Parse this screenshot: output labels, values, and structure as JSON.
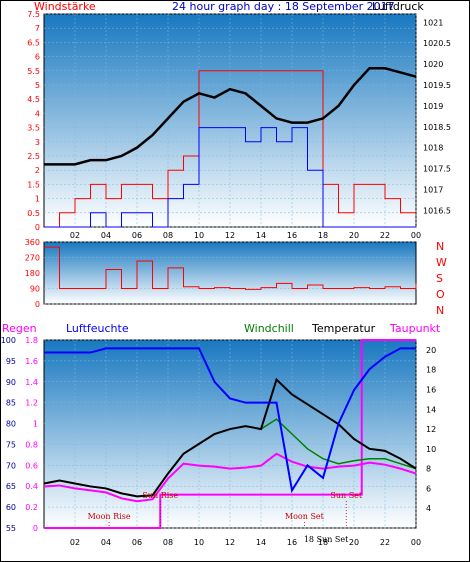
{
  "header": {
    "title": "24 hour graph day : 18 September 2017",
    "left_label": "Windstärke",
    "right_label": "Luftdruck"
  },
  "colors": {
    "background": "#ffffff",
    "plot_top": "#1878c0",
    "plot_bottom": "#ffffff",
    "wind": "#ff0000",
    "gust": "#0000ff",
    "pressure": "#000000",
    "humidity": "#0000ff",
    "rain": "#ff00ff",
    "windchill": "#008000",
    "temperature": "#000000",
    "dewpoint": "#ff00ff",
    "astro": "#cc0000",
    "frame": "#000000"
  },
  "chart_data": [
    {
      "type": "line",
      "name": "wind-pressure",
      "xlabel": "",
      "x_ticks": [
        "02",
        "04",
        "06",
        "08",
        "10",
        "12",
        "14",
        "16",
        "18",
        "20",
        "22",
        "00"
      ],
      "left_axis": {
        "label": "Windstärke",
        "ticks": [
          "0",
          "0.5",
          "1",
          "1.5",
          "2",
          "2.5",
          "3",
          "3.5",
          "4",
          "4.5",
          "5",
          "5.5",
          "6",
          "6.5",
          "7",
          "7.5"
        ],
        "ylim": [
          0,
          7.5
        ]
      },
      "right_axis": {
        "label": "Luftdruck",
        "ticks": [
          "1016.5",
          "1017",
          "1017.5",
          "1018",
          "1018.5",
          "1019",
          "1019.5",
          "1020",
          "1020.5",
          "1021"
        ],
        "ylim": [
          1016.1,
          1021.2
        ]
      },
      "series": [
        {
          "axis": "right",
          "x": [
            0,
            1,
            2,
            3,
            4,
            5,
            6,
            7,
            8,
            9,
            10,
            11,
            12,
            13,
            14,
            15,
            16,
            17,
            18,
            19,
            20,
            21,
            22,
            23,
            24
          ],
          "values": [
            1017.6,
            1017.6,
            1017.6,
            1017.7,
            1017.7,
            1017.8,
            1018.0,
            1018.3,
            1018.7,
            1019.1,
            1019.3,
            1019.2,
            1019.4,
            1019.3,
            1019.0,
            1018.7,
            1018.6,
            1018.6,
            1018.7,
            1019.0,
            1019.5,
            1019.9,
            1019.9,
            1019.8,
            1019.7
          ]
        },
        {
          "axis": "left",
          "x": [
            0,
            1,
            2,
            3,
            4,
            5,
            6,
            7,
            8,
            9,
            10,
            11,
            12,
            13,
            14,
            15,
            16,
            17,
            18,
            19,
            20,
            21,
            22,
            23,
            24
          ],
          "values": [
            0,
            0.5,
            1.0,
            1.5,
            1.0,
            1.5,
            1.5,
            1.0,
            2.0,
            2.5,
            5.5,
            5.5,
            5.5,
            5.5,
            5.5,
            5.5,
            5.5,
            5.5,
            1.5,
            0.5,
            1.5,
            1.5,
            1.0,
            0.5,
            0.5
          ]
        },
        {
          "axis": "left",
          "x": [
            0,
            1,
            2,
            3,
            4,
            5,
            6,
            7,
            8,
            9,
            10,
            11,
            12,
            13,
            14,
            15,
            16,
            17,
            18,
            19,
            20,
            21,
            22,
            23,
            24
          ],
          "values": [
            0,
            0,
            0,
            0.5,
            0,
            0.5,
            0.5,
            0,
            1.0,
            1.5,
            3.5,
            3.5,
            3.5,
            3.0,
            3.5,
            3.0,
            3.5,
            2.0,
            0,
            0,
            0,
            0,
            0,
            0,
            0
          ]
        }
      ]
    },
    {
      "type": "line",
      "name": "wind-direction",
      "right_labels": [
        "N",
        "W",
        "S",
        "O",
        "N"
      ],
      "ticks": [
        "360",
        "270",
        "180",
        "90",
        "0"
      ],
      "ylim": [
        0,
        360
      ],
      "x": [
        0,
        1,
        2,
        3,
        4,
        5,
        6,
        7,
        8,
        9,
        10,
        11,
        12,
        13,
        14,
        15,
        16,
        17,
        18,
        19,
        20,
        21,
        22,
        23,
        24
      ],
      "values": [
        330,
        90,
        90,
        90,
        200,
        90,
        250,
        90,
        210,
        100,
        90,
        95,
        90,
        85,
        95,
        120,
        90,
        110,
        90,
        90,
        95,
        90,
        100,
        90,
        120
      ]
    },
    {
      "type": "line",
      "name": "temperature-humidity",
      "legend": [
        "Regen",
        "Luftfeuchte",
        "Windchill",
        "Temperatur",
        "Taupunkt"
      ],
      "x_ticks": [
        "02",
        "04",
        "06",
        "08",
        "10",
        "12",
        "14",
        "16",
        "18",
        "20",
        "22",
        "00"
      ],
      "left_humidity_axis": {
        "ticks": [
          "55",
          "60",
          "65",
          "70",
          "75",
          "80",
          "85",
          "90",
          "95",
          "100"
        ],
        "ylim": [
          55,
          100
        ]
      },
      "left_rain_axis": {
        "ticks": [
          "0",
          "0.2",
          "0.4",
          "0.6",
          "0.8",
          "1",
          "1.2",
          "1.4",
          "1.6",
          "1.8"
        ],
        "ylim": [
          0,
          1.8
        ]
      },
      "right_temp_axis": {
        "ticks": [
          "4",
          "6",
          "8",
          "10",
          "12",
          "14",
          "16",
          "18",
          "20"
        ],
        "ylim": [
          2,
          21
        ]
      },
      "series": [
        {
          "name": "Luftfeuchte",
          "x": [
            0,
            1,
            2,
            3,
            4,
            5,
            6,
            7,
            8,
            9,
            10,
            11,
            12,
            13,
            14,
            15,
            16,
            17,
            18,
            19,
            20,
            21,
            22,
            23,
            24
          ],
          "values": [
            97,
            97,
            97,
            97,
            98,
            98,
            98,
            98,
            98,
            98,
            98,
            90,
            86,
            85,
            85,
            85,
            64,
            70,
            67,
            80,
            88,
            93,
            96,
            98,
            98
          ]
        },
        {
          "name": "Temperatur",
          "x": [
            0,
            1,
            2,
            3,
            4,
            5,
            6,
            7,
            8,
            9,
            10,
            11,
            12,
            13,
            14,
            15,
            16,
            17,
            18,
            19,
            20,
            21,
            22,
            23,
            24
          ],
          "values": [
            6.5,
            6.8,
            6.5,
            6.2,
            6.0,
            5.5,
            5.2,
            5.3,
            7.5,
            9.5,
            10.5,
            11.5,
            12.0,
            12.3,
            12.0,
            17.0,
            15.5,
            14.5,
            13.5,
            12.5,
            11.0,
            10.0,
            9.8,
            9.0,
            8.0
          ]
        },
        {
          "name": "Windchill",
          "x": [
            0,
            1,
            2,
            3,
            4,
            5,
            6,
            7,
            8,
            9,
            10,
            11,
            12,
            13,
            14,
            15,
            16,
            17,
            18,
            19,
            20,
            21,
            22,
            23,
            24
          ],
          "values": [
            6.5,
            6.8,
            6.5,
            6.2,
            6.0,
            5.5,
            5.2,
            5.3,
            7.5,
            9.5,
            10.5,
            11.5,
            12.0,
            12.3,
            12.0,
            13.0,
            11.5,
            10.0,
            9.0,
            8.5,
            8.8,
            9.0,
            9.0,
            8.5,
            8.0
          ]
        },
        {
          "name": "Taupunkt",
          "x": [
            0,
            1,
            2,
            3,
            4,
            5,
            6,
            7,
            8,
            9,
            10,
            11,
            12,
            13,
            14,
            15,
            16,
            17,
            18,
            19,
            20,
            21,
            22,
            23,
            24
          ],
          "values": [
            6.2,
            6.3,
            6.0,
            5.8,
            5.6,
            5.0,
            4.7,
            4.9,
            7.0,
            8.5,
            8.3,
            8.2,
            8.0,
            8.1,
            8.3,
            9.5,
            8.7,
            8.2,
            8.0,
            8.2,
            8.3,
            8.6,
            8.4,
            8.0,
            7.5
          ]
        },
        {
          "name": "Regen",
          "x": [
            0,
            7.5,
            7.5,
            20.5,
            20.5,
            21.5,
            21.5,
            24
          ],
          "values": [
            0,
            0,
            0.32,
            0.32,
            1.8,
            1.8,
            1.8,
            1.8
          ]
        }
      ],
      "annotations": {
        "moon_rise": {
          "label": "Moon Rise",
          "x": 4.2
        },
        "sun_rise": {
          "label": "Sun Rise",
          "x": 7.5
        },
        "sun_set": {
          "label": "Sun Set",
          "x": 19.5
        },
        "moon_set": {
          "label": "Moon Set",
          "x": 16.8
        },
        "sun_set_bottom": {
          "label": "18 Sun Set",
          "x": 18.2
        }
      }
    }
  ]
}
